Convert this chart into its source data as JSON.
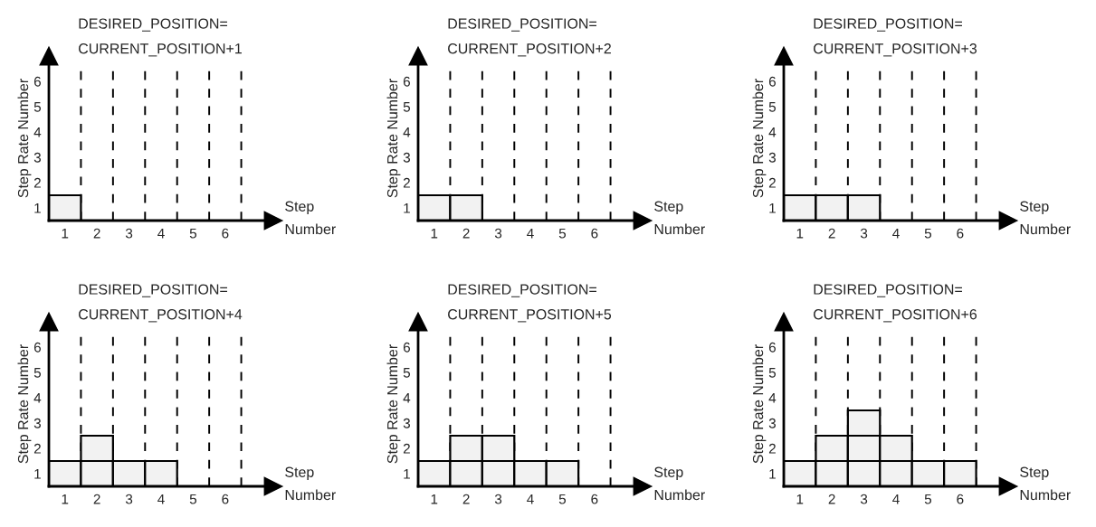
{
  "chart_data": [
    {
      "type": "bar",
      "stacked": true,
      "title": "DESIRED_POSITION=\nCURRENT_POSITION+1",
      "xlabel": "Step\nNumber",
      "ylabel": "Step Rate Number",
      "xlim": [
        0,
        7
      ],
      "ylim": [
        0,
        6.5
      ],
      "xticks": [
        {
          "value": 0.5,
          "label": "1"
        },
        {
          "value": 1.5,
          "label": "2"
        },
        {
          "value": 2.5,
          "label": "3"
        },
        {
          "value": 3.5,
          "label": "4"
        },
        {
          "value": 4.5,
          "label": "5"
        },
        {
          "value": 5.5,
          "label": "6"
        }
      ],
      "yticks": [
        {
          "value": 0.5,
          "label": "1"
        },
        {
          "value": 1.5,
          "label": "2"
        },
        {
          "value": 2.5,
          "label": "3"
        },
        {
          "value": 3.5,
          "label": "4"
        },
        {
          "value": 4.5,
          "label": "5"
        },
        {
          "value": 5.5,
          "label": "6"
        }
      ],
      "ref_lines": [
        {
          "axis": "x",
          "value": 1,
          "color": "#000000",
          "line_style": "dashed"
        },
        {
          "axis": "x",
          "value": 2,
          "color": "#000000",
          "line_style": "dashed"
        },
        {
          "axis": "x",
          "value": 3,
          "color": "#000000",
          "line_style": "dashed"
        },
        {
          "axis": "x",
          "value": 4,
          "color": "#000000",
          "line_style": "dashed"
        },
        {
          "axis": "x",
          "value": 5,
          "color": "#000000",
          "line_style": "dashed"
        },
        {
          "axis": "x",
          "value": 6,
          "color": "#000000",
          "line_style": "dashed"
        }
      ],
      "series": [
        {
          "color": "#f2f2f2",
          "x": [
            0.5
          ],
          "values": [
            1
          ]
        }
      ]
    },
    {
      "type": "bar",
      "stacked": true,
      "title": "DESIRED_POSITION=\nCURRENT_POSITION+2",
      "xlabel": "Step\nNumber",
      "ylabel": "Step Rate Number",
      "xlim": [
        0,
        7
      ],
      "ylim": [
        0,
        6.5
      ],
      "xticks": [
        {
          "value": 0.5,
          "label": "1"
        },
        {
          "value": 1.5,
          "label": "2"
        },
        {
          "value": 2.5,
          "label": "3"
        },
        {
          "value": 3.5,
          "label": "4"
        },
        {
          "value": 4.5,
          "label": "5"
        },
        {
          "value": 5.5,
          "label": "6"
        }
      ],
      "yticks": [
        {
          "value": 0.5,
          "label": "1"
        },
        {
          "value": 1.5,
          "label": "2"
        },
        {
          "value": 2.5,
          "label": "3"
        },
        {
          "value": 3.5,
          "label": "4"
        },
        {
          "value": 4.5,
          "label": "5"
        },
        {
          "value": 5.5,
          "label": "6"
        }
      ],
      "ref_lines": [
        {
          "axis": "x",
          "value": 1,
          "color": "#000000",
          "line_style": "dashed"
        },
        {
          "axis": "x",
          "value": 2,
          "color": "#000000",
          "line_style": "dashed"
        },
        {
          "axis": "x",
          "value": 3,
          "color": "#000000",
          "line_style": "dashed"
        },
        {
          "axis": "x",
          "value": 4,
          "color": "#000000",
          "line_style": "dashed"
        },
        {
          "axis": "x",
          "value": 5,
          "color": "#000000",
          "line_style": "dashed"
        },
        {
          "axis": "x",
          "value": 6,
          "color": "#000000",
          "line_style": "dashed"
        }
      ],
      "series": [
        {
          "color": "#f2f2f2",
          "x": [
            0.5,
            1.5
          ],
          "values": [
            1,
            1
          ]
        }
      ]
    },
    {
      "type": "bar",
      "stacked": true,
      "title": "DESIRED_POSITION=\nCURRENT_POSITION+3",
      "xlabel": "Step\nNumber",
      "ylabel": "Step Rate Number",
      "xlim": [
        0,
        7
      ],
      "ylim": [
        0,
        6.5
      ],
      "xticks": [
        {
          "value": 0.5,
          "label": "1"
        },
        {
          "value": 1.5,
          "label": "2"
        },
        {
          "value": 2.5,
          "label": "3"
        },
        {
          "value": 3.5,
          "label": "4"
        },
        {
          "value": 4.5,
          "label": "5"
        },
        {
          "value": 5.5,
          "label": "6"
        }
      ],
      "yticks": [
        {
          "value": 0.5,
          "label": "1"
        },
        {
          "value": 1.5,
          "label": "2"
        },
        {
          "value": 2.5,
          "label": "3"
        },
        {
          "value": 3.5,
          "label": "4"
        },
        {
          "value": 4.5,
          "label": "5"
        },
        {
          "value": 5.5,
          "label": "6"
        }
      ],
      "ref_lines": [
        {
          "axis": "x",
          "value": 1,
          "color": "#000000",
          "line_style": "dashed"
        },
        {
          "axis": "x",
          "value": 2,
          "color": "#000000",
          "line_style": "dashed"
        },
        {
          "axis": "x",
          "value": 3,
          "color": "#000000",
          "line_style": "dashed"
        },
        {
          "axis": "x",
          "value": 4,
          "color": "#000000",
          "line_style": "dashed"
        },
        {
          "axis": "x",
          "value": 5,
          "color": "#000000",
          "line_style": "dashed"
        },
        {
          "axis": "x",
          "value": 6,
          "color": "#000000",
          "line_style": "dashed"
        }
      ],
      "series": [
        {
          "color": "#f2f2f2",
          "x": [
            0.5,
            1.5,
            2.5
          ],
          "values": [
            1,
            1,
            1
          ]
        }
      ]
    },
    {
      "type": "bar",
      "stacked": true,
      "title": "DESIRED_POSITION=\nCURRENT_POSITION+4",
      "xlabel": "Step\nNumber",
      "ylabel": "Step Rate Number",
      "xlim": [
        0,
        7
      ],
      "ylim": [
        0,
        6.5
      ],
      "xticks": [
        {
          "value": 0.5,
          "label": "1"
        },
        {
          "value": 1.5,
          "label": "2"
        },
        {
          "value": 2.5,
          "label": "3"
        },
        {
          "value": 3.5,
          "label": "4"
        },
        {
          "value": 4.5,
          "label": "5"
        },
        {
          "value": 5.5,
          "label": "6"
        }
      ],
      "yticks": [
        {
          "value": 0.5,
          "label": "1"
        },
        {
          "value": 1.5,
          "label": "2"
        },
        {
          "value": 2.5,
          "label": "3"
        },
        {
          "value": 3.5,
          "label": "4"
        },
        {
          "value": 4.5,
          "label": "5"
        },
        {
          "value": 5.5,
          "label": "6"
        }
      ],
      "ref_lines": [
        {
          "axis": "x",
          "value": 1,
          "color": "#000000",
          "line_style": "dashed"
        },
        {
          "axis": "x",
          "value": 2,
          "color": "#000000",
          "line_style": "dashed"
        },
        {
          "axis": "x",
          "value": 3,
          "color": "#000000",
          "line_style": "dashed"
        },
        {
          "axis": "x",
          "value": 4,
          "color": "#000000",
          "line_style": "dashed"
        },
        {
          "axis": "x",
          "value": 5,
          "color": "#000000",
          "line_style": "dashed"
        },
        {
          "axis": "x",
          "value": 6,
          "color": "#000000",
          "line_style": "dashed"
        }
      ],
      "series": [
        {
          "color": "#f2f2f2",
          "x": [
            0.5,
            1.5,
            2.5,
            3.5
          ],
          "values": [
            1,
            1,
            1,
            1
          ]
        },
        {
          "color": "#f2f2f2",
          "x": [
            1.5
          ],
          "values": [
            1
          ]
        }
      ]
    },
    {
      "type": "bar",
      "stacked": true,
      "title": "DESIRED_POSITION=\nCURRENT_POSITION+5",
      "xlabel": "Step\nNumber",
      "ylabel": "Step Rate Number",
      "xlim": [
        0,
        7
      ],
      "ylim": [
        0,
        6.5
      ],
      "xticks": [
        {
          "value": 0.5,
          "label": "1"
        },
        {
          "value": 1.5,
          "label": "2"
        },
        {
          "value": 2.5,
          "label": "3"
        },
        {
          "value": 3.5,
          "label": "4"
        },
        {
          "value": 4.5,
          "label": "5"
        },
        {
          "value": 5.5,
          "label": "6"
        }
      ],
      "yticks": [
        {
          "value": 0.5,
          "label": "1"
        },
        {
          "value": 1.5,
          "label": "2"
        },
        {
          "value": 2.5,
          "label": "3"
        },
        {
          "value": 3.5,
          "label": "4"
        },
        {
          "value": 4.5,
          "label": "5"
        },
        {
          "value": 5.5,
          "label": "6"
        }
      ],
      "ref_lines": [
        {
          "axis": "x",
          "value": 1,
          "color": "#000000",
          "line_style": "dashed"
        },
        {
          "axis": "x",
          "value": 2,
          "color": "#000000",
          "line_style": "dashed"
        },
        {
          "axis": "x",
          "value": 3,
          "color": "#000000",
          "line_style": "dashed"
        },
        {
          "axis": "x",
          "value": 4,
          "color": "#000000",
          "line_style": "dashed"
        },
        {
          "axis": "x",
          "value": 5,
          "color": "#000000",
          "line_style": "dashed"
        },
        {
          "axis": "x",
          "value": 6,
          "color": "#000000",
          "line_style": "dashed"
        }
      ],
      "series": [
        {
          "color": "#f2f2f2",
          "x": [
            0.5,
            1.5,
            2.5,
            3.5,
            4.5
          ],
          "values": [
            1,
            1,
            1,
            1,
            1
          ]
        },
        {
          "color": "#f2f2f2",
          "x": [
            1.5,
            2.5
          ],
          "values": [
            1,
            1
          ]
        }
      ]
    },
    {
      "type": "bar",
      "stacked": true,
      "title": "DESIRED_POSITION=\nCURRENT_POSITION+6",
      "xlabel": "Step\nNumber",
      "ylabel": "Step Rate Number",
      "xlim": [
        0,
        7
      ],
      "ylim": [
        0,
        6.5
      ],
      "xticks": [
        {
          "value": 0.5,
          "label": "1"
        },
        {
          "value": 1.5,
          "label": "2"
        },
        {
          "value": 2.5,
          "label": "3"
        },
        {
          "value": 3.5,
          "label": "4"
        },
        {
          "value": 4.5,
          "label": "5"
        },
        {
          "value": 5.5,
          "label": "6"
        }
      ],
      "yticks": [
        {
          "value": 0.5,
          "label": "1"
        },
        {
          "value": 1.5,
          "label": "2"
        },
        {
          "value": 2.5,
          "label": "3"
        },
        {
          "value": 3.5,
          "label": "4"
        },
        {
          "value": 4.5,
          "label": "5"
        },
        {
          "value": 5.5,
          "label": "6"
        }
      ],
      "ref_lines": [
        {
          "axis": "x",
          "value": 1,
          "color": "#000000",
          "line_style": "dashed"
        },
        {
          "axis": "x",
          "value": 2,
          "color": "#000000",
          "line_style": "dashed"
        },
        {
          "axis": "x",
          "value": 3,
          "color": "#000000",
          "line_style": "dashed"
        },
        {
          "axis": "x",
          "value": 4,
          "color": "#000000",
          "line_style": "dashed"
        },
        {
          "axis": "x",
          "value": 5,
          "color": "#000000",
          "line_style": "dashed"
        },
        {
          "axis": "x",
          "value": 6,
          "color": "#000000",
          "line_style": "dashed"
        }
      ],
      "series": [
        {
          "color": "#f2f2f2",
          "x": [
            0.5,
            1.5,
            2.5,
            3.5,
            4.5,
            5.5
          ],
          "values": [
            1,
            1,
            1,
            1,
            1,
            1
          ]
        },
        {
          "color": "#f2f2f2",
          "x": [
            1.5,
            2.5,
            3.5
          ],
          "values": [
            1,
            1,
            1
          ]
        },
        {
          "color": "#f2f2f2",
          "x": [
            2.5
          ],
          "values": [
            1
          ]
        }
      ]
    }
  ]
}
